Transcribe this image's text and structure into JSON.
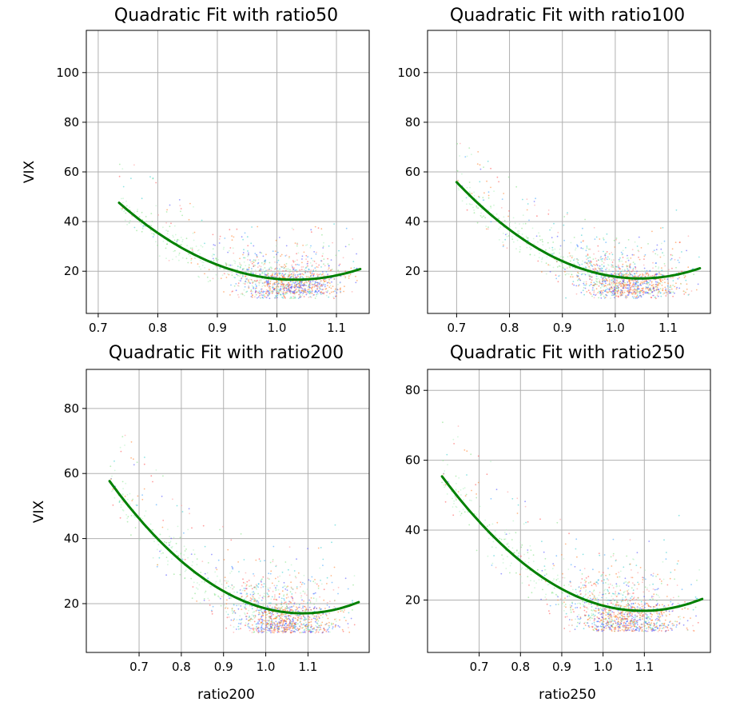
{
  "figure": {
    "type": "2x2 scatter subplots with quadratic fit"
  },
  "chart_data": [
    {
      "type": "scatter",
      "title": "Quadratic Fit with ratio50",
      "xlabel": "",
      "ylabel": "VIX",
      "xlim": [
        0.68,
        1.155
      ],
      "ylim": [
        3,
        117
      ],
      "xticks": [
        0.7,
        0.8,
        0.9,
        1.0,
        1.1
      ],
      "xtick_labels": [
        "0.7",
        "0.8",
        "0.9",
        "1.0",
        "1.1"
      ],
      "yticks": [
        20,
        40,
        60,
        80,
        100
      ],
      "ytick_labels": [
        "20",
        "40",
        "60",
        "80",
        "100"
      ],
      "grid": true,
      "fit": {
        "type": "quadratic",
        "a": 355.8,
        "b": -733.0,
        "c": 394.1,
        "x_range": [
          0.735,
          1.14
        ]
      },
      "scatter_cloud": {
        "x_center": 1.02,
        "x_spread": 0.045,
        "y_center": 19,
        "y_spread": 7,
        "x_max": 1.14
      }
    },
    {
      "type": "scatter",
      "title": "Quadratic Fit with ratio100",
      "xlabel": "",
      "ylabel": "",
      "xlim": [
        0.645,
        1.18
      ],
      "ylim": [
        3,
        117
      ],
      "xticks": [
        0.7,
        0.8,
        0.9,
        1.0,
        1.1
      ],
      "xtick_labels": [
        "0.7",
        "0.8",
        "0.9",
        "1.0",
        "1.1"
      ],
      "yticks": [
        20,
        40,
        60,
        80,
        100
      ],
      "ytick_labels": [
        "20",
        "40",
        "60",
        "80",
        "100"
      ],
      "grid": true,
      "fit": {
        "type": "quadratic",
        "a": 322.1,
        "b": -674.5,
        "c": 370.2,
        "x_range": [
          0.7,
          1.16
        ]
      },
      "scatter_cloud": {
        "x_center": 1.02,
        "x_spread": 0.05,
        "y_center": 19,
        "y_spread": 7,
        "x_max": 1.16
      }
    },
    {
      "type": "scatter",
      "title": "Quadratic Fit with ratio200",
      "xlabel": "ratio200",
      "ylabel": "VIX",
      "xlim": [
        0.575,
        1.245
      ],
      "ylim": [
        5,
        92
      ],
      "xticks": [
        0.7,
        0.8,
        0.9,
        1.0,
        1.1
      ],
      "xtick_labels": [
        "0.7",
        "0.8",
        "0.9",
        "1.0",
        "1.1"
      ],
      "yticks": [
        20,
        40,
        60,
        80
      ],
      "ytick_labels": [
        "20",
        "40",
        "60",
        "80"
      ],
      "grid": true,
      "fit": {
        "type": "quadratic",
        "a": 194.5,
        "b": -422.9,
        "c": 246.9,
        "x_range": [
          0.63,
          1.22
        ]
      },
      "scatter_cloud": {
        "x_center": 1.04,
        "x_spread": 0.065,
        "y_center": 20,
        "y_spread": 7,
        "x_max": 1.22
      }
    },
    {
      "type": "scatter",
      "title": "Quadratic Fit with ratio250",
      "xlabel": "ratio250",
      "ylabel": "",
      "xlim": [
        0.575,
        1.26
      ],
      "ylim": [
        5,
        86
      ],
      "xticks": [
        0.7,
        0.8,
        0.9,
        1.0,
        1.1
      ],
      "xtick_labels": [
        "0.7",
        "0.8",
        "0.9",
        "1.0",
        "1.1"
      ],
      "yticks": [
        20,
        40,
        60,
        80
      ],
      "ytick_labels": [
        "20",
        "40",
        "60",
        "80"
      ],
      "grid": true,
      "fit": {
        "type": "quadratic",
        "a": 163.2,
        "b": -357.6,
        "c": 212.8,
        "x_range": [
          0.61,
          1.24
        ]
      },
      "scatter_cloud": {
        "x_center": 1.05,
        "x_spread": 0.07,
        "y_center": 20,
        "y_spread": 7,
        "x_max": 1.24
      }
    }
  ],
  "colors": {
    "fit_line": "#008000",
    "grid": "#b0b0b0",
    "scatter_palette": [
      "#ff4d4d",
      "#ff7f2a",
      "#4d4dff",
      "#3aa0ff",
      "#33cccc",
      "#7fe07f",
      "#b0f0c0",
      "#ff9999"
    ]
  }
}
